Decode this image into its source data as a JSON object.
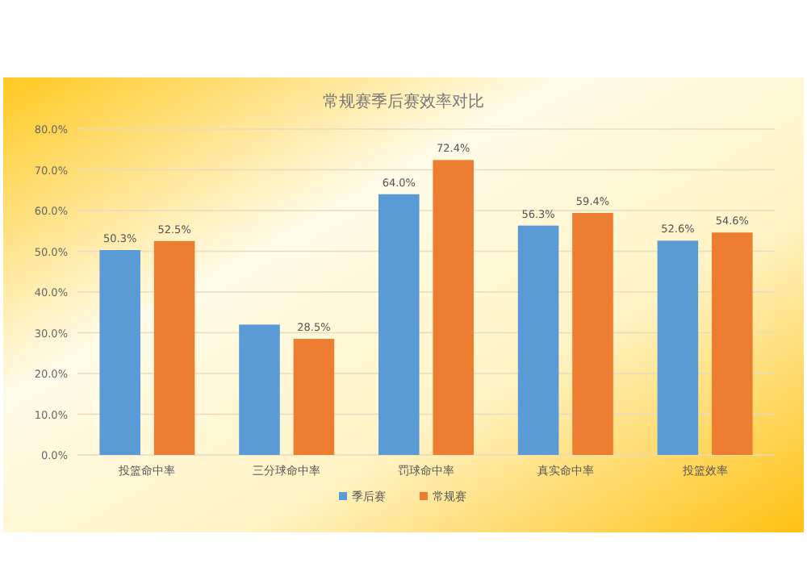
{
  "chart_data": {
    "type": "bar",
    "title": "常规赛季后赛效率对比",
    "categories": [
      "投篮命中率",
      "三分球命中率",
      "罚球命中率",
      "真实命中率",
      "投篮效率"
    ],
    "series": [
      {
        "name": "季后赛",
        "color": "#5b9bd5",
        "values": [
          50.3,
          32.0,
          64.0,
          56.3,
          52.6
        ],
        "value_labels": [
          "50.3%",
          null,
          "64.0%",
          "56.3%",
          "52.6%"
        ]
      },
      {
        "name": "常规赛",
        "color": "#ed7d31",
        "values": [
          52.5,
          28.5,
          72.4,
          59.4,
          54.6
        ],
        "value_labels": [
          "52.5%",
          "28.5%",
          "72.4%",
          "59.4%",
          "54.6%"
        ]
      }
    ],
    "ylim": [
      0,
      80
    ],
    "yticks": [
      {
        "value": 0,
        "label": "0.0%"
      },
      {
        "value": 10,
        "label": "10.0%"
      },
      {
        "value": 20,
        "label": "20.0%"
      },
      {
        "value": 30,
        "label": "30.0%"
      },
      {
        "value": 40,
        "label": "40.0%"
      },
      {
        "value": 50,
        "label": "50.0%"
      },
      {
        "value": 60,
        "label": "60.0%"
      },
      {
        "value": 70,
        "label": "70.0%"
      },
      {
        "value": 80,
        "label": "80.0%"
      }
    ],
    "grid": "y",
    "legend": "bottom"
  }
}
